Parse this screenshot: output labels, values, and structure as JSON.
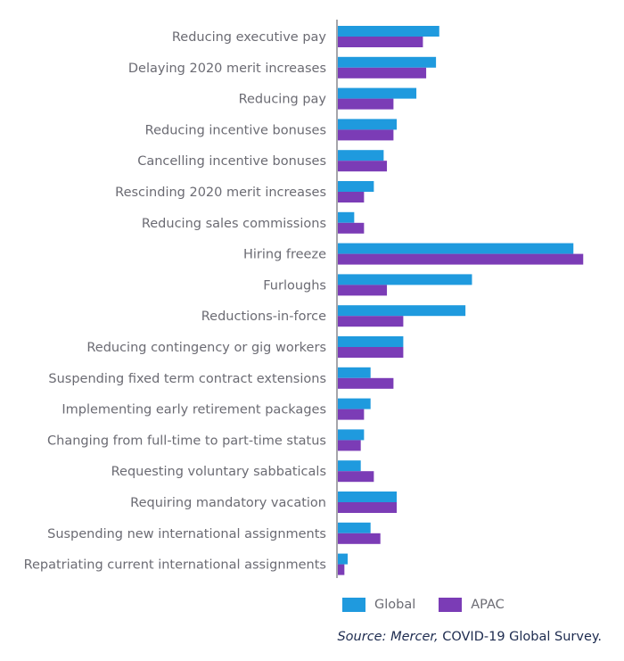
{
  "chart_data": {
    "type": "bar",
    "orientation": "horizontal",
    "categories": [
      "Reducing executive pay",
      "Delaying 2020 merit increases",
      "Reducing pay",
      "Reducing incentive bonuses",
      "Cancelling incentive bonuses",
      "Rescinding 2020 merit increases",
      "Reducing sales commissions",
      "Hiring freeze",
      "Furloughs",
      "Reductions-in-force",
      "Reducing contingency or gig workers",
      "Suspending fixed term contract extensions",
      "Implementing early retirement packages",
      "Changing from full-time to part-time status",
      "Requesting voluntary sabbaticals",
      "Requiring mandatory vacation",
      "Suspending new international assignments",
      "Repatriating current international assignments"
    ],
    "series": [
      {
        "name": "Global",
        "color": "#1f9ade",
        "values": [
          31,
          30,
          24,
          18,
          14,
          11,
          5,
          72,
          41,
          39,
          20,
          10,
          10,
          8,
          7,
          18,
          10,
          3
        ]
      },
      {
        "name": "APAC",
        "color": "#7b3cb6",
        "values": [
          26,
          27,
          17,
          17,
          15,
          8,
          8,
          75,
          15,
          20,
          20,
          17,
          8,
          7,
          11,
          18,
          13,
          2
        ]
      }
    ],
    "xlim": [
      0,
      80
    ],
    "xlabel": "",
    "ylabel": "",
    "title": "",
    "grid": false,
    "legend_position": "bottom"
  },
  "legend": {
    "items": [
      {
        "label": "Global",
        "color": "#1f9ade"
      },
      {
        "label": "APAC",
        "color": "#7b3cb6"
      }
    ]
  },
  "source": {
    "prefix": "Source: Mercer,",
    "text": "COVID-19 Global Survey."
  }
}
